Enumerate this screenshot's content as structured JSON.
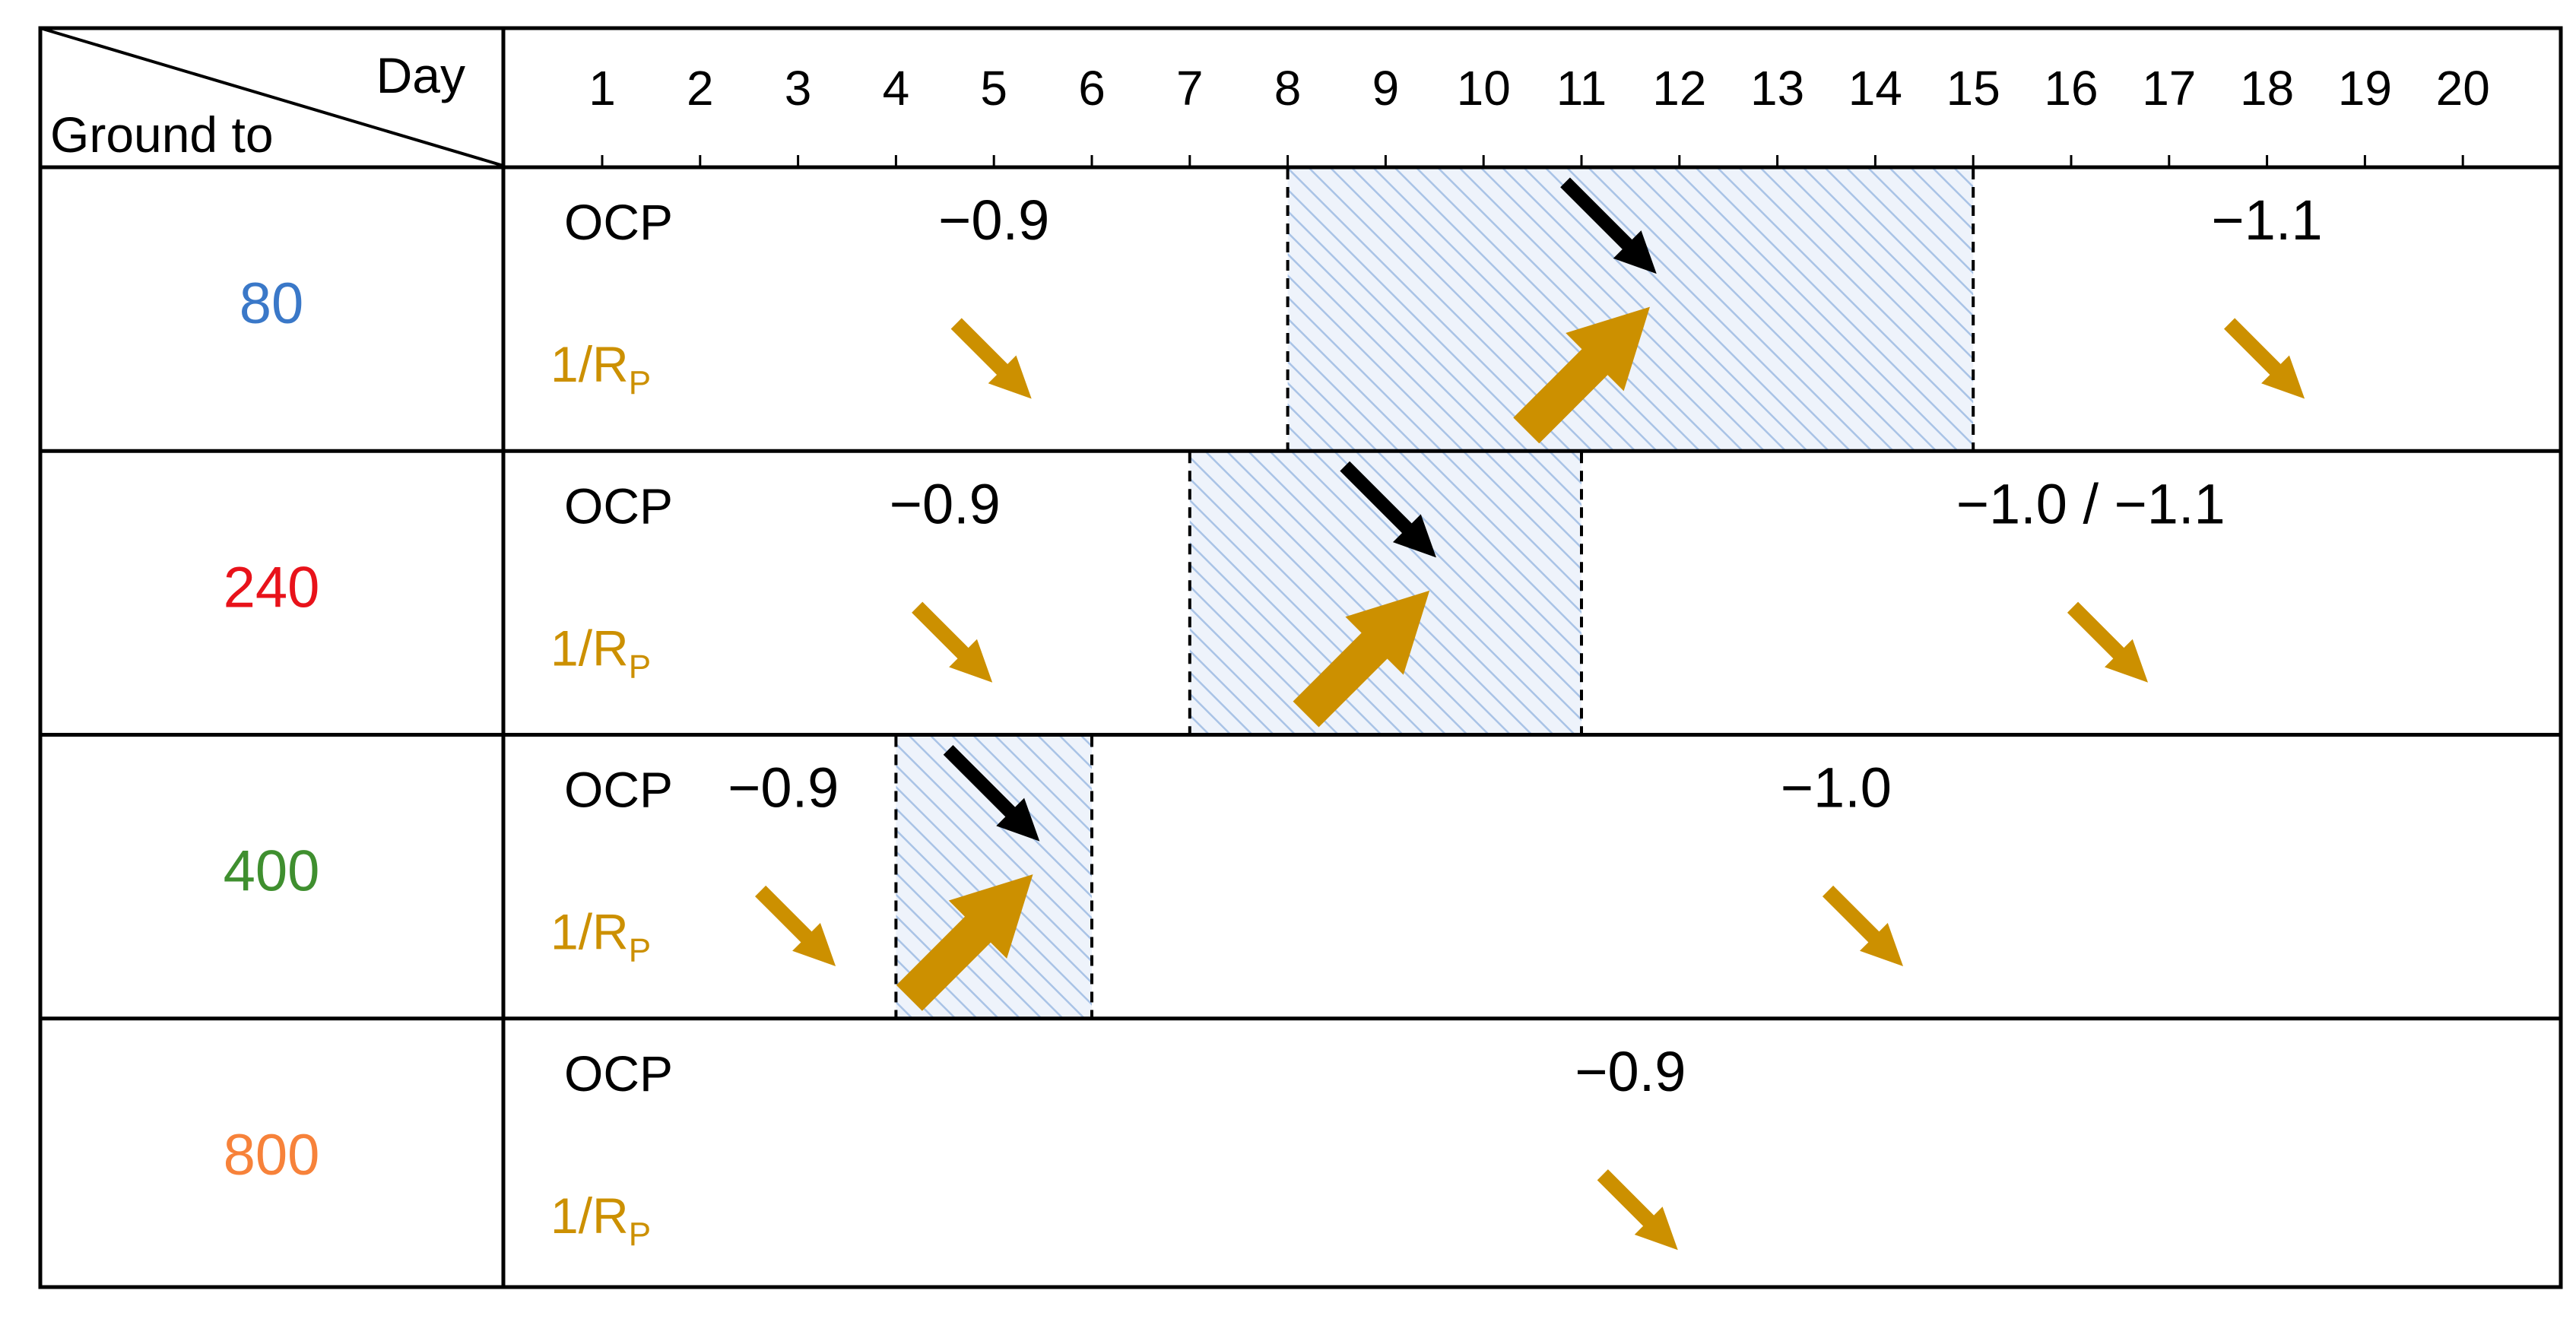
{
  "header": {
    "corner_top": "Day",
    "corner_bottom": "Ground to"
  },
  "days": [
    "1",
    "2",
    "3",
    "4",
    "5",
    "6",
    "7",
    "8",
    "9",
    "10",
    "11",
    "12",
    "13",
    "14",
    "15",
    "16",
    "17",
    "18",
    "19",
    "20"
  ],
  "row_labels": {
    "ocp": "OCP",
    "rp_prefix": "1/R",
    "rp_subscript": "P"
  },
  "colors": {
    "border": "#000000",
    "ocp_arrow": "#000000",
    "rp_arrow": "#cc9000",
    "shade_fill": "#eef3fb",
    "shade_hatch": "#a9c3e6"
  },
  "rows": [
    {
      "ground": "80",
      "ground_color": "#3a78c8",
      "values": [
        {
          "text": "−0.9",
          "day": 5
        },
        {
          "text": "−1.1",
          "day": 18
        }
      ],
      "shaded_days": [
        8,
        15
      ],
      "arrows": [
        {
          "type": "down-small",
          "icon": "rp-down-arrow-icon",
          "day": 5
        },
        {
          "type": "ocp-down",
          "icon": "ocp-down-arrow-icon",
          "day": 11.3
        },
        {
          "type": "rp-up-large",
          "icon": "rp-up-arrow-icon",
          "day": 11.3
        },
        {
          "type": "down-small",
          "icon": "rp-down-arrow-icon",
          "day": 18
        }
      ]
    },
    {
      "ground": "240",
      "ground_color": "#e8121a",
      "values": [
        {
          "text": "−0.9",
          "day": 4.5
        },
        {
          "text": "−1.0 / −1.1",
          "day": 16.2
        }
      ],
      "shaded_days": [
        7,
        11
      ],
      "arrows": [
        {
          "type": "down-small",
          "icon": "rp-down-arrow-icon",
          "day": 4.6
        },
        {
          "type": "ocp-down",
          "icon": "ocp-down-arrow-icon",
          "day": 9.05
        },
        {
          "type": "rp-up-large",
          "icon": "rp-up-arrow-icon",
          "day": 9.05
        },
        {
          "type": "down-small",
          "icon": "rp-down-arrow-icon",
          "day": 16.4
        }
      ]
    },
    {
      "ground": "400",
      "ground_color": "#3f8f2f",
      "values": [
        {
          "text": "−0.9",
          "day": 2.85
        },
        {
          "text": "−1.0",
          "day": 13.6
        }
      ],
      "shaded_days": [
        4,
        6
      ],
      "arrows": [
        {
          "type": "down-small",
          "icon": "rp-down-arrow-icon",
          "day": 3
        },
        {
          "type": "ocp-down",
          "icon": "ocp-down-arrow-icon",
          "day": 5.0
        },
        {
          "type": "rp-up-large",
          "icon": "rp-up-arrow-icon",
          "day": 5.0
        },
        {
          "type": "down-small",
          "icon": "rp-down-arrow-icon",
          "day": 13.9
        }
      ]
    },
    {
      "ground": "800",
      "ground_color": "#f7823a",
      "values": [
        {
          "text": "−0.9",
          "day": 11.5
        }
      ],
      "shaded_days": [],
      "arrows": [
        {
          "type": "down-small",
          "icon": "rp-down-arrow-icon",
          "day": 11.6
        }
      ]
    }
  ]
}
